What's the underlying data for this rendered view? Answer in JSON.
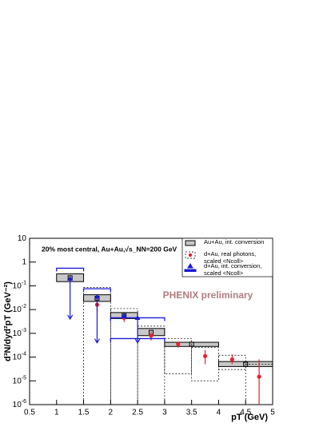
{
  "chart_data": {
    "type": "scatter",
    "log_y": true,
    "annotation": "20% most central, Au+Au,√s_NN=200 GeV",
    "watermark": "PHENIX preliminary",
    "x_label": "pT (GeV)",
    "y_label": "d³N/dyd²pT (GeV⁻²)",
    "xlim": [
      0.5,
      5
    ],
    "xticks": [
      0.5,
      1,
      1.5,
      2,
      2.5,
      3,
      3.5,
      4,
      4.5,
      5
    ],
    "ylim": [
      1e-06,
      10
    ],
    "yticks": [
      {
        "value": 1e-06,
        "label": "10",
        "sup": "-6"
      },
      {
        "value": 1e-05,
        "label": "10",
        "sup": "-5"
      },
      {
        "value": 0.0001,
        "label": "10",
        "sup": "-4"
      },
      {
        "value": 0.001,
        "label": "10",
        "sup": "-3"
      },
      {
        "value": 0.01,
        "label": "10",
        "sup": "-2"
      },
      {
        "value": 0.1,
        "label": "10",
        "sup": "-1"
      },
      1,
      10
    ],
    "series": [
      {
        "name": "Au+Au, int. conversion",
        "color": "#000000",
        "marker": "open-square",
        "x": [
          1.25,
          1.75,
          2.25,
          2.75,
          3.5,
          4.5
        ],
        "values": [
          0.22,
          0.03,
          0.0055,
          0.0011,
          0.00035,
          5e-05
        ],
        "box_x": [
          [
            1,
            1.5
          ],
          [
            1.5,
            2
          ],
          [
            2,
            2.5
          ],
          [
            2.5,
            3
          ],
          [
            3,
            4
          ],
          [
            4,
            5
          ]
        ],
        "box_y": [
          [
            0.15,
            0.32
          ],
          [
            0.022,
            0.042
          ],
          [
            0.0042,
            0.0075
          ],
          [
            0.0008,
            0.0016
          ],
          [
            0.00028,
            0.00042
          ],
          [
            4e-05,
            6.5e-05
          ]
        ]
      },
      {
        "name": "d+Au, real photons, scaled <Ncoll>",
        "color": "#e8232a",
        "marker": "dot",
        "x": [
          1.75,
          2.25,
          2.75,
          3.25,
          3.75,
          4.25,
          4.75
        ],
        "values": [
          0.016,
          0.0045,
          0.0008,
          0.00035,
          0.00011,
          8e-05,
          1.5e-05
        ],
        "err": [
          [
            0.008,
            0.03
          ],
          [
            0.003,
            0.006
          ],
          [
            0.0005,
            0.0012
          ],
          [
            0.00025,
            0.00045
          ],
          [
            5e-05,
            0.0002
          ],
          [
            5e-05,
            0.00013
          ],
          [
            1e-06,
            8e-05
          ]
        ],
        "box_x": [
          [
            1.5,
            2
          ],
          [
            2,
            2.5
          ],
          [
            2.5,
            3
          ],
          [
            3,
            3.5
          ],
          [
            3.5,
            4
          ],
          [
            4,
            4.5
          ],
          [
            4.5,
            5
          ]
        ],
        "box_y": [
          [
            1e-06,
            0.085
          ],
          [
            1e-06,
            0.011
          ],
          [
            1e-06,
            0.002
          ],
          [
            2e-05,
            0.0006
          ],
          [
            1e-05,
            0.00025
          ],
          [
            3e-05,
            0.00012
          ],
          [
            1e-06,
            5e-05
          ]
        ]
      },
      {
        "name": "d+Au, int. conversion, scaled <Ncoll>",
        "color": "#1a1ad6",
        "marker": "triangle",
        "x": [
          1.25,
          1.75,
          2.25,
          2.5
        ],
        "values": [
          0.2,
          0.035,
          0.0055,
          0.0045
        ],
        "arrow_to": [
          0.004,
          0.0004,
          null,
          0.0004
        ],
        "bracket_x": [
          [
            1,
            1.5
          ],
          [
            1.5,
            2
          ],
          [
            2,
            3
          ],
          [
            2,
            3
          ]
        ],
        "bracket_y": [
          0.55,
          0.075,
          0.0045,
          0.0006
        ]
      }
    ]
  }
}
